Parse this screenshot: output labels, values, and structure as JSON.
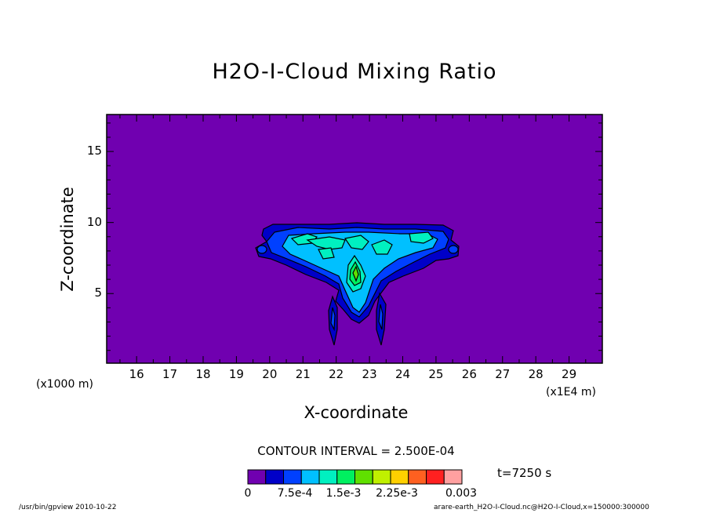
{
  "chart_data": {
    "type": "contour",
    "title": "H2O-I-Cloud Mixing Ratio",
    "xlabel": "X-coordinate",
    "ylabel": "Z-coordinate",
    "x_unit_left": "(x1000 m)",
    "x_unit_right": "(x1E4 m)",
    "x_ticks": [
      "16",
      "17",
      "18",
      "19",
      "20",
      "21",
      "22",
      "23",
      "24",
      "25",
      "26",
      "27",
      "28",
      "29"
    ],
    "y_ticks": [
      "5",
      "10",
      "15"
    ],
    "xlim": [
      15.1,
      30.0
    ],
    "ylim": [
      0.1,
      17.6
    ],
    "contour_interval": "CONTOUR INTERVAL = 2.500E-04",
    "time_label": "t=7250 s",
    "colorbar": {
      "colors": [
        "#7000b0",
        "#0000c8",
        "#0040ff",
        "#00c0ff",
        "#00f0c0",
        "#00f060",
        "#60e000",
        "#c0f000",
        "#ffd000",
        "#ff6020",
        "#ff2020",
        "#ffa0a0"
      ],
      "labels": [
        "0",
        "7.5e-4",
        "1.5e-3",
        "2.25e-3",
        "0.003"
      ]
    },
    "footer_left": "/usr/bin/gpview   2010-10-22",
    "footer_right": "arare-earth_H2O-I-Cloud.nc@H2O-I-Cloud,x=150000:300000",
    "peak_location": [
      22.6,
      7.0
    ]
  }
}
